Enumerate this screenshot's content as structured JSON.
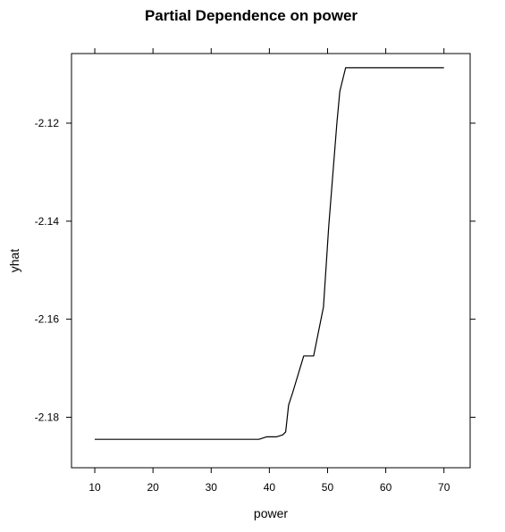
{
  "chart_data": {
    "type": "line",
    "title": "Partial Dependence on power",
    "xlabel": "power",
    "ylabel": "yhat",
    "xlim": [
      6,
      74.5
    ],
    "ylim": [
      -2.1903,
      -2.1058
    ],
    "xticks": [
      10,
      20,
      30,
      40,
      50,
      60,
      70
    ],
    "xtick_labels": [
      "10",
      "20",
      "30",
      "40",
      "50",
      "60",
      "70"
    ],
    "yticks": [
      -2.18,
      -2.16,
      -2.14,
      -2.12
    ],
    "ytick_labels": [
      "-2.18",
      "-2.16",
      "-2.14",
      "-2.12"
    ],
    "grid": false,
    "legend": "none",
    "line_color": "#000000",
    "series": [
      {
        "x": [
          10,
          20,
          30,
          38.2,
          39.5,
          41.2,
          42.3,
          42.8,
          43.3,
          44.0,
          45.9,
          47.6,
          49.3,
          50.2,
          51.6,
          52.1,
          53.1,
          60,
          70
        ],
        "y": [
          -2.1845,
          -2.1845,
          -2.1845,
          -2.1845,
          -2.184,
          -2.184,
          -2.1836,
          -2.183,
          -2.1775,
          -2.175,
          -2.1675,
          -2.1675,
          -2.1575,
          -2.141,
          -2.12,
          -2.1135,
          -2.1087,
          -2.1087,
          -2.1087
        ]
      }
    ]
  }
}
